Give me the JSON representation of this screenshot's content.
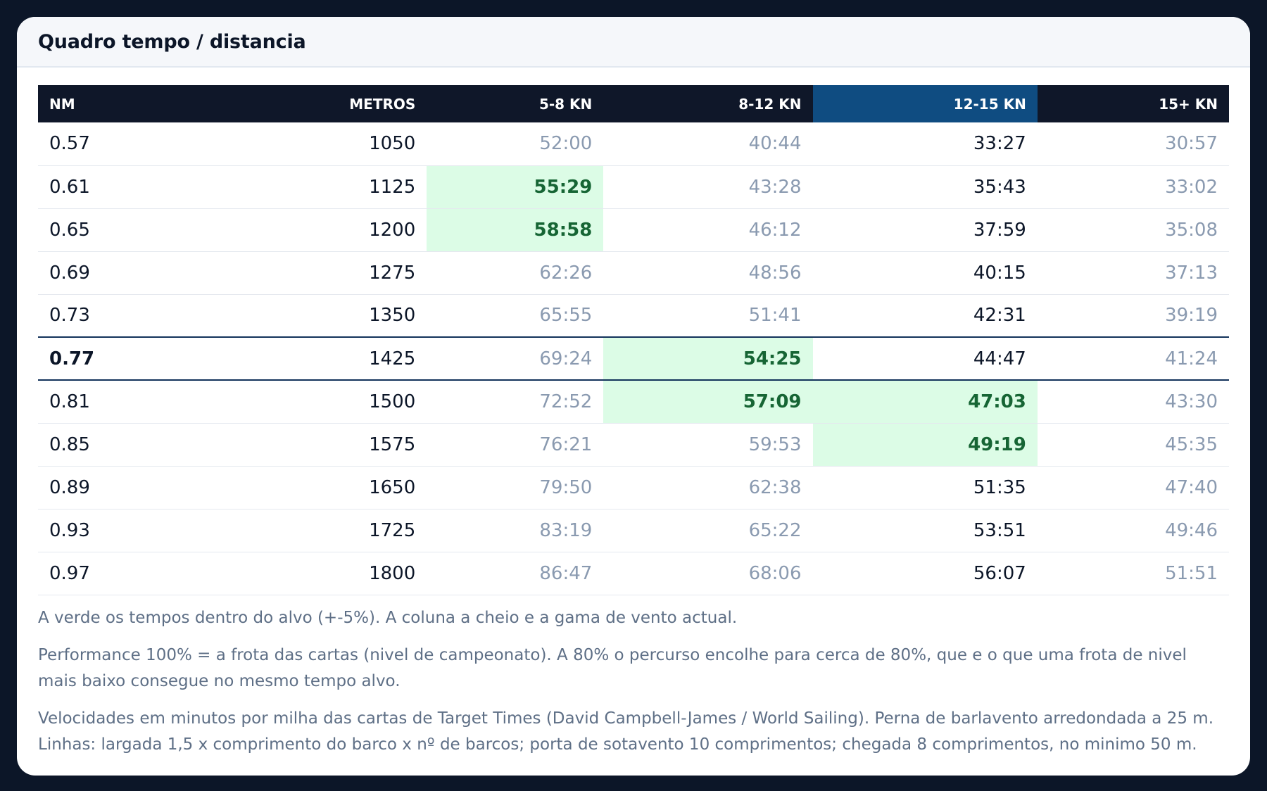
{
  "title": "Quadro tempo / distancia",
  "table": {
    "headers": [
      "NM",
      "METROS",
      "5-8 KN",
      "8-12 KN",
      "12-15 KN",
      "15+ KN"
    ],
    "active_column": 4,
    "current_row": 5,
    "rows": [
      {
        "nm": "0.57",
        "m": "1050",
        "c1": "52:00",
        "c2": "40:44",
        "c3": "33:27",
        "c4": "30:57",
        "green": []
      },
      {
        "nm": "0.61",
        "m": "1125",
        "c1": "55:29",
        "c2": "43:28",
        "c3": "35:43",
        "c4": "33:02",
        "green": [
          2
        ]
      },
      {
        "nm": "0.65",
        "m": "1200",
        "c1": "58:58",
        "c2": "46:12",
        "c3": "37:59",
        "c4": "35:08",
        "green": [
          2
        ]
      },
      {
        "nm": "0.69",
        "m": "1275",
        "c1": "62:26",
        "c2": "48:56",
        "c3": "40:15",
        "c4": "37:13",
        "green": []
      },
      {
        "nm": "0.73",
        "m": "1350",
        "c1": "65:55",
        "c2": "51:41",
        "c3": "42:31",
        "c4": "39:19",
        "green": []
      },
      {
        "nm": "0.77",
        "m": "1425",
        "c1": "69:24",
        "c2": "54:25",
        "c3": "44:47",
        "c4": "41:24",
        "green": [
          3
        ]
      },
      {
        "nm": "0.81",
        "m": "1500",
        "c1": "72:52",
        "c2": "57:09",
        "c3": "47:03",
        "c4": "43:30",
        "green": [
          3,
          4
        ]
      },
      {
        "nm": "0.85",
        "m": "1575",
        "c1": "76:21",
        "c2": "59:53",
        "c3": "49:19",
        "c4": "45:35",
        "green": [
          4
        ]
      },
      {
        "nm": "0.89",
        "m": "1650",
        "c1": "79:50",
        "c2": "62:38",
        "c3": "51:35",
        "c4": "47:40",
        "green": []
      },
      {
        "nm": "0.93",
        "m": "1725",
        "c1": "83:19",
        "c2": "65:22",
        "c3": "53:51",
        "c4": "49:46",
        "green": []
      },
      {
        "nm": "0.97",
        "m": "1800",
        "c1": "86:47",
        "c2": "68:06",
        "c3": "56:07",
        "c4": "51:51",
        "green": []
      }
    ]
  },
  "notes": [
    "A verde os tempos dentro do alvo (+-5%). A coluna a cheio e a gama de vento actual.",
    "Performance 100% = a frota das cartas (nivel de campeonato). A 80% o percurso encolhe para cerca de 80%, que e o que uma frota de nivel mais baixo consegue no mesmo tempo alvo.",
    "Velocidades em minutos por milha das cartas de Target Times (David Campbell-James / World Sailing). Perna de barlavento arredondada a 25 m. Linhas: largada 1,5 x comprimento do barco x nº de barcos; porta de sotavento 10 comprimentos; chegada 8 comprimentos, no minimo 50 m."
  ],
  "colors": {
    "page_bg": "#0c1628",
    "header_bg": "#0f1729",
    "active_header_bg": "#0f4c81",
    "target_bg": "#dcfce6",
    "target_text": "#166534",
    "muted_text": "#8a9ab0",
    "current_row_border": "#12325a"
  }
}
